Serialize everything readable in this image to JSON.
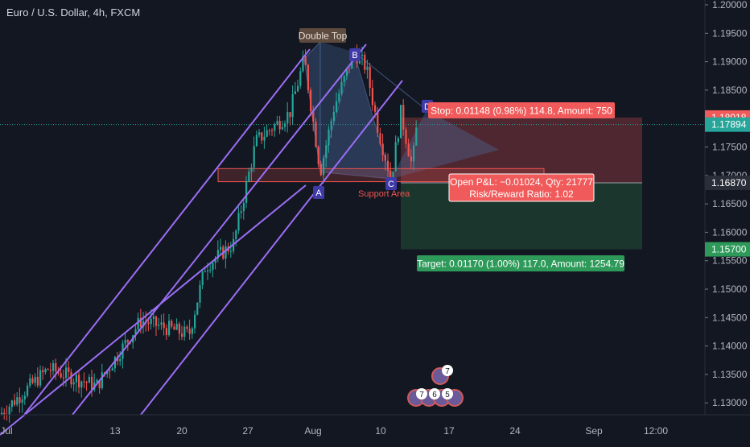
{
  "symbol_title": "Euro / U.S. Dollar, 4h, FXCM",
  "colors": {
    "background": "#131722",
    "up_candle": "#26a69a",
    "down_candle": "#ef5350",
    "channel": "#9c6ef5",
    "pattern_fill": "#4a6fa5",
    "stop_zone": "#5a2a33",
    "target_zone": "#1d3a2e",
    "last_price_line": "#26a69a"
  },
  "annotations": {
    "double_top": "Double Top",
    "point_a": "A",
    "point_b": "B",
    "point_c": "C",
    "point_d": "D",
    "support_area": "Support Area",
    "stop_label": "Stop: 0.01148 (0.98%) 114.8, Amount: 750",
    "pnl_line1": "Open P&L: −0.01024, Qty: 21777",
    "pnl_line2": "Risk/Reward Ratio: 1.02",
    "target_label": "Target: 0.01170 (1.00%) 117.0, Amount: 1254.79",
    "event_badges": [
      "7",
      "6",
      "5"
    ],
    "event_badge_top": "7"
  },
  "price_badges": {
    "stop": "1.18018",
    "last": "1.17894",
    "entry": "1.16870",
    "target": "1.15700"
  },
  "chart_data": {
    "type": "candlestick",
    "title": "Euro / U.S. Dollar, 4h, FXCM",
    "y_axis": {
      "range": [
        1.1295,
        1.2005
      ],
      "ticks": [
        "1.20000",
        "1.19500",
        "1.19000",
        "1.18500",
        "1.18000",
        "1.17500",
        "1.17000",
        "1.16500",
        "1.16000",
        "1.15500",
        "1.15000",
        "1.14500",
        "1.14000",
        "1.13500",
        "1.13000"
      ]
    },
    "x_axis": {
      "ticks": [
        "Jul",
        "13",
        "20",
        "27",
        "Aug",
        "10",
        "17",
        "24",
        "Sep",
        "12:00"
      ]
    },
    "key_points": {
      "start_price": 1.128,
      "A": 1.1706,
      "B": 1.1917,
      "C": 1.1694,
      "channel_peak": 1.1905,
      "last_price": 1.17894
    },
    "position": {
      "stop_price": 1.18018,
      "entry_price": 1.1687,
      "target_price": 1.157,
      "stop": "0.01148 (0.98%) 114.8",
      "target": "0.01170 (1.00%) 117.0"
    },
    "grid": false
  }
}
